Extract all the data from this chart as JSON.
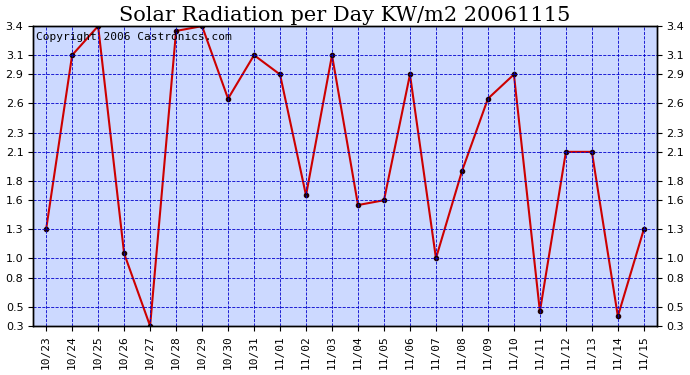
{
  "title": "Solar Radiation per Day KW/m2 20061115",
  "copyright": "Copyright 2006 Castronics.com",
  "x_labels": [
    "10/23",
    "10/24",
    "10/25",
    "10/26",
    "10/27",
    "10/28",
    "10/29",
    "10/30",
    "10/31",
    "11/01",
    "11/02",
    "11/03",
    "11/04",
    "11/05",
    "11/06",
    "11/07",
    "11/08",
    "11/09",
    "11/10",
    "11/11",
    "11/12",
    "11/13",
    "11/14",
    "11/15"
  ],
  "y_values": [
    1.3,
    3.1,
    3.4,
    1.05,
    0.3,
    3.35,
    3.4,
    2.65,
    3.1,
    2.9,
    1.65,
    3.1,
    1.55,
    1.6,
    2.9,
    1.0,
    1.9,
    2.65,
    2.9,
    0.45,
    2.1,
    2.1,
    0.4,
    1.3
  ],
  "ylim": [
    0.3,
    3.4
  ],
  "yticks": [
    0.3,
    0.5,
    0.8,
    1.0,
    1.3,
    1.6,
    1.8,
    2.1,
    2.3,
    2.6,
    2.9,
    3.1,
    3.4
  ],
  "line_color": "#cc0000",
  "marker_color": "#220000",
  "bg_color": "#ccd9ff",
  "grid_color": "#0000cc",
  "title_fontsize": 15,
  "tick_fontsize": 8,
  "copyright_fontsize": 8
}
